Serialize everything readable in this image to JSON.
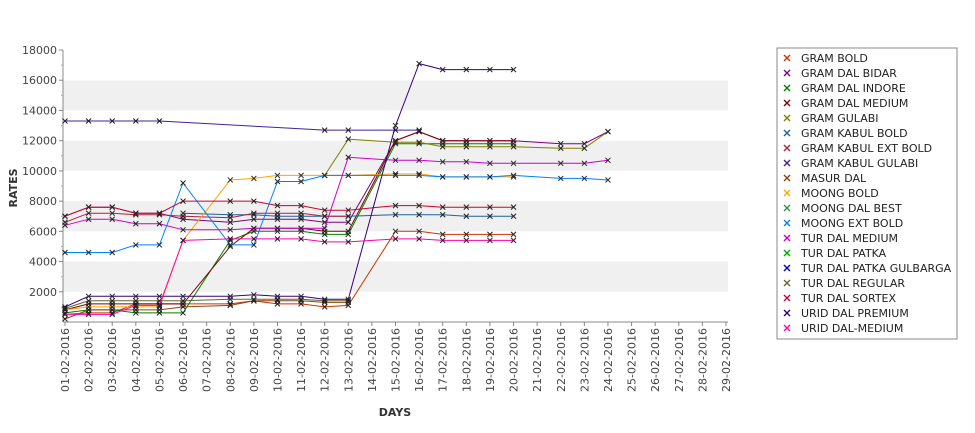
{
  "chart_data": {
    "type": "line",
    "title": "",
    "xlabel": "DAYS",
    "ylabel": "RATES",
    "ylim": [
      0,
      18000
    ],
    "yticks": [
      2000,
      4000,
      6000,
      8000,
      10000,
      12000,
      14000,
      16000,
      18000
    ],
    "grid": "horizontal alternating bands",
    "legend_position": "right",
    "categories": [
      "01-02-2016",
      "02-02-2016",
      "03-02-2016",
      "04-02-2016",
      "05-02-2016",
      "06-02-2016",
      "07-02-2016",
      "08-02-2016",
      "09-02-2016",
      "10-02-2016",
      "11-02-2016",
      "12-02-2016",
      "13-02-2016",
      "14-02-2016",
      "15-02-2016",
      "16-02-2016",
      "17-02-2016",
      "18-02-2016",
      "19-02-2016",
      "20-02-2016",
      "21-02-2016",
      "22-02-2016",
      "23-02-2016",
      "24-02-2016",
      "25-02-2016",
      "26-02-2016",
      "27-02-2016",
      "28-02-2016",
      "29-02-2016"
    ],
    "series": [
      {
        "name": "GRAM BOLD",
        "color": "#cc3300",
        "values": [
          500,
          600,
          600,
          1200,
          1200,
          1200,
          null,
          1200,
          1400,
          1200,
          1200,
          1000,
          1100,
          null,
          6000,
          6000,
          5800,
          5800,
          5800,
          5800,
          null,
          null,
          null,
          null,
          null,
          null,
          null,
          null,
          null
        ]
      },
      {
        "name": "GRAM DAL BIDAR",
        "color": "#800080",
        "values": [
          7000,
          7600,
          7600,
          7200,
          7200,
          6800,
          null,
          6600,
          6800,
          6800,
          6800,
          6600,
          6600,
          null,
          12000,
          12600,
          12000,
          12000,
          12000,
          12000,
          null,
          11800,
          11800,
          12600,
          null,
          null,
          null,
          null,
          null
        ]
      },
      {
        "name": "GRAM DAL INDORE",
        "color": "#008000",
        "values": [
          600,
          800,
          800,
          600,
          600,
          600,
          null,
          5400,
          6000,
          6000,
          6000,
          5800,
          5800,
          null,
          11800,
          11800,
          11800,
          11800,
          11800,
          11800,
          null,
          null,
          null,
          null,
          null,
          null,
          null,
          null,
          null
        ]
      },
      {
        "name": "GRAM DAL MEDIUM",
        "color": "#800000",
        "values": [
          800,
          1200,
          1200,
          1200,
          1200,
          1200,
          null,
          5000,
          6200,
          6200,
          6200,
          6000,
          6000,
          null,
          12000,
          12600,
          12000,
          12000,
          12000,
          12000,
          null,
          null,
          null,
          null,
          null,
          null,
          null,
          null,
          null
        ]
      },
      {
        "name": "GRAM GULABI",
        "color": "#808000",
        "values": [
          null,
          null,
          null,
          null,
          null,
          null,
          null,
          null,
          null,
          null,
          null,
          9700,
          12100,
          null,
          11900,
          11900,
          11600,
          11600,
          11600,
          11600,
          null,
          11500,
          11500,
          12600,
          null,
          null,
          null,
          null,
          null
        ]
      },
      {
        "name": "GRAM KABUL BOLD",
        "color": "#1f5f9f",
        "values": [
          null,
          null,
          null,
          null,
          null,
          7200,
          null,
          7100,
          7100,
          7000,
          7000,
          7000,
          7000,
          null,
          7100,
          7100,
          7100,
          7000,
          7000,
          7000,
          null,
          null,
          null,
          null,
          null,
          null,
          null,
          null,
          null
        ]
      },
      {
        "name": "GRAM KABUL EXT BOLD",
        "color": "#b02040",
        "values": [
          6600,
          7200,
          7200,
          7100,
          7100,
          7000,
          null,
          6900,
          7200,
          7200,
          7200,
          7000,
          7000,
          null,
          null,
          null,
          null,
          null,
          null,
          null,
          null,
          null,
          null,
          null,
          null,
          null,
          null,
          null,
          null
        ]
      },
      {
        "name": "GRAM KABUL GULABI",
        "color": "#4020a0",
        "values": [
          13300,
          13300,
          13300,
          13300,
          13300,
          null,
          null,
          null,
          null,
          null,
          null,
          12700,
          12700,
          null,
          12700,
          12700,
          null,
          null,
          null,
          null,
          null,
          null,
          null,
          null,
          null,
          null,
          null,
          null,
          null
        ]
      },
      {
        "name": "MASUR DAL",
        "color": "#8b4513",
        "values": [
          200,
          800,
          800,
          800,
          800,
          1000,
          null,
          1100,
          1400,
          1400,
          1400,
          1300,
          1300,
          null,
          null,
          null,
          null,
          null,
          null,
          null,
          null,
          null,
          null,
          null,
          null,
          null,
          null,
          null,
          null
        ]
      },
      {
        "name": "MOONG BOLD",
        "color": "#ffa500",
        "values": [
          800,
          1000,
          1000,
          1000,
          1000,
          5400,
          null,
          9400,
          9500,
          9700,
          9700,
          9700,
          9700,
          null,
          9800,
          9800,
          9600,
          9600,
          9600,
          9600,
          null,
          null,
          null,
          null,
          null,
          null,
          null,
          null,
          null
        ]
      },
      {
        "name": "MOONG DAL BEST",
        "color": "#2e8b57",
        "values": [
          null,
          null,
          null,
          null,
          null,
          null,
          null,
          null,
          null,
          null,
          null,
          null,
          null,
          null,
          null,
          null,
          null,
          null,
          null,
          null,
          null,
          null,
          null,
          null,
          null,
          null,
          null,
          null,
          null
        ]
      },
      {
        "name": "MOONG EXT BOLD",
        "color": "#0080ff",
        "values": [
          4600,
          4600,
          4600,
          5100,
          5100,
          9200,
          null,
          5100,
          5100,
          9300,
          9300,
          9700,
          9700,
          null,
          9700,
          9700,
          9600,
          9600,
          9600,
          9700,
          null,
          9500,
          9500,
          9400,
          null,
          null,
          null,
          null,
          null
        ]
      },
      {
        "name": "TUR DAL MEDIUM",
        "color": "#cc00cc",
        "values": [
          6400,
          6800,
          6800,
          6500,
          6500,
          6100,
          null,
          6100,
          6200,
          6200,
          6200,
          6200,
          10900,
          null,
          10700,
          10700,
          10600,
          10600,
          10500,
          10500,
          null,
          10500,
          10500,
          10700,
          null,
          null,
          null,
          null,
          null
        ]
      },
      {
        "name": "TUR DAL PATKA",
        "color": "#00aa00",
        "values": [
          null,
          null,
          null,
          null,
          null,
          null,
          null,
          null,
          null,
          null,
          null,
          null,
          null,
          null,
          null,
          null,
          null,
          null,
          null,
          null,
          null,
          null,
          null,
          null,
          null,
          null,
          null,
          null,
          null
        ]
      },
      {
        "name": "TUR DAL PATKA GULBARGA",
        "color": "#0000cc",
        "values": [
          null,
          null,
          null,
          null,
          null,
          null,
          null,
          null,
          null,
          null,
          null,
          null,
          null,
          null,
          null,
          null,
          null,
          null,
          null,
          null,
          null,
          null,
          null,
          null,
          null,
          null,
          null,
          null,
          null
        ]
      },
      {
        "name": "TUR DAL REGULAR",
        "color": "#666633",
        "values": [
          900,
          1400,
          1400,
          1400,
          1400,
          1400,
          null,
          1500,
          1500,
          1500,
          1500,
          1400,
          1400,
          null,
          null,
          null,
          null,
          null,
          null,
          null,
          null,
          null,
          null,
          null,
          null,
          null,
          null,
          null,
          null
        ]
      },
      {
        "name": "TUR DAL SORTEX",
        "color": "#cc0033",
        "values": [
          7000,
          7600,
          7600,
          7200,
          7200,
          8000,
          null,
          8000,
          8000,
          7700,
          7700,
          7400,
          7400,
          null,
          7700,
          7700,
          7600,
          7600,
          7600,
          7600,
          null,
          null,
          null,
          null,
          null,
          null,
          null,
          null,
          null
        ]
      },
      {
        "name": "URID DAL PREMIUM",
        "color": "#33007a",
        "values": [
          1000,
          1700,
          1700,
          1700,
          1700,
          1700,
          null,
          1700,
          1800,
          1700,
          1700,
          1500,
          1500,
          null,
          13000,
          17100,
          16700,
          16700,
          16700,
          16700,
          null,
          null,
          null,
          null,
          null,
          null,
          null,
          null,
          null
        ]
      },
      {
        "name": "URID DAL-MEDIUM",
        "color": "#ff00aa",
        "values": [
          500,
          500,
          500,
          1100,
          1100,
          5400,
          null,
          5500,
          5500,
          5500,
          5500,
          5300,
          5300,
          null,
          5500,
          5500,
          5400,
          5400,
          5400,
          5400,
          null,
          null,
          null,
          null,
          null,
          null,
          null,
          null,
          null
        ]
      }
    ]
  }
}
